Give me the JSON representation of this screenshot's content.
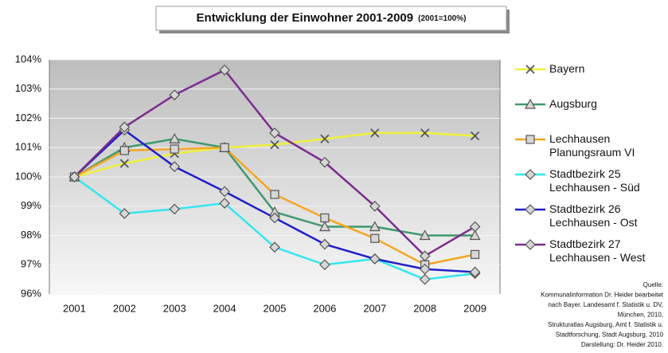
{
  "chart_data": {
    "type": "line",
    "title": "Entwicklung der Einwohner 2001-2009",
    "subtitle": "(2001=100%)",
    "categories": [
      "2001",
      "2002",
      "2003",
      "2004",
      "2005",
      "2006",
      "2007",
      "2008",
      "2009"
    ],
    "ylim": [
      96,
      104
    ],
    "yticks": [
      {
        "value": 96,
        "label": "96%"
      },
      {
        "value": 97,
        "label": "97%"
      },
      {
        "value": 98,
        "label": "98%"
      },
      {
        "value": 99,
        "label": "99%"
      },
      {
        "value": 100,
        "label": "100%"
      },
      {
        "value": 101,
        "label": "101%"
      },
      {
        "value": 102,
        "label": "102%"
      },
      {
        "value": 103,
        "label": "103%"
      },
      {
        "value": 104,
        "label": "104%"
      }
    ],
    "grid": true,
    "legend": "right",
    "series": [
      {
        "name": "Bayern",
        "color": "#f0f03c",
        "marker": "x",
        "values": [
          100,
          100.46,
          100.8,
          101.0,
          101.1,
          101.3,
          101.5,
          101.5,
          101.4
        ]
      },
      {
        "name": "Augsburg",
        "color": "#3f9a6e",
        "marker": "triangle",
        "values": [
          100,
          101.0,
          101.3,
          101.0,
          98.8,
          98.3,
          98.3,
          98.0,
          98.0
        ]
      },
      {
        "name": "Lechhausen Planungsraum VI",
        "color": "#f5a623",
        "marker": "square",
        "values": [
          100,
          100.9,
          100.95,
          101.0,
          99.4,
          98.6,
          97.9,
          97.0,
          97.35
        ]
      },
      {
        "name": "Stadtbezirk 25 Lechhausen - Süd",
        "color": "#33e6ee",
        "marker": "diamond",
        "values": [
          100,
          98.75,
          98.9,
          99.1,
          97.6,
          97.0,
          97.2,
          96.5,
          96.7
        ]
      },
      {
        "name": "Stadtbezirk 26 Lechhausen - Ost",
        "color": "#1e1ec8",
        "marker": "diamond",
        "values": [
          100,
          101.6,
          100.35,
          99.5,
          98.6,
          97.7,
          97.2,
          96.85,
          96.75
        ]
      },
      {
        "name": "Stadtbezirk 27 Lechhausen - West",
        "color": "#7b2d8e",
        "marker": "diamond",
        "values": [
          100,
          101.7,
          102.8,
          103.65,
          101.5,
          100.5,
          99.0,
          97.3,
          98.3
        ]
      }
    ],
    "source": [
      "Quelle:",
      "Kommunalinformation Dr. Heider bearbeitet",
      "nach Bayer. Landesamt f. Statistik u. DV,",
      "München, 2010,",
      "Strukturatlas Augsburg, Amt f. Statistik u.",
      "Stadtforschung, Stadt Augsburg, 2010",
      "Darstellung: Dr. Heider 2010."
    ]
  }
}
